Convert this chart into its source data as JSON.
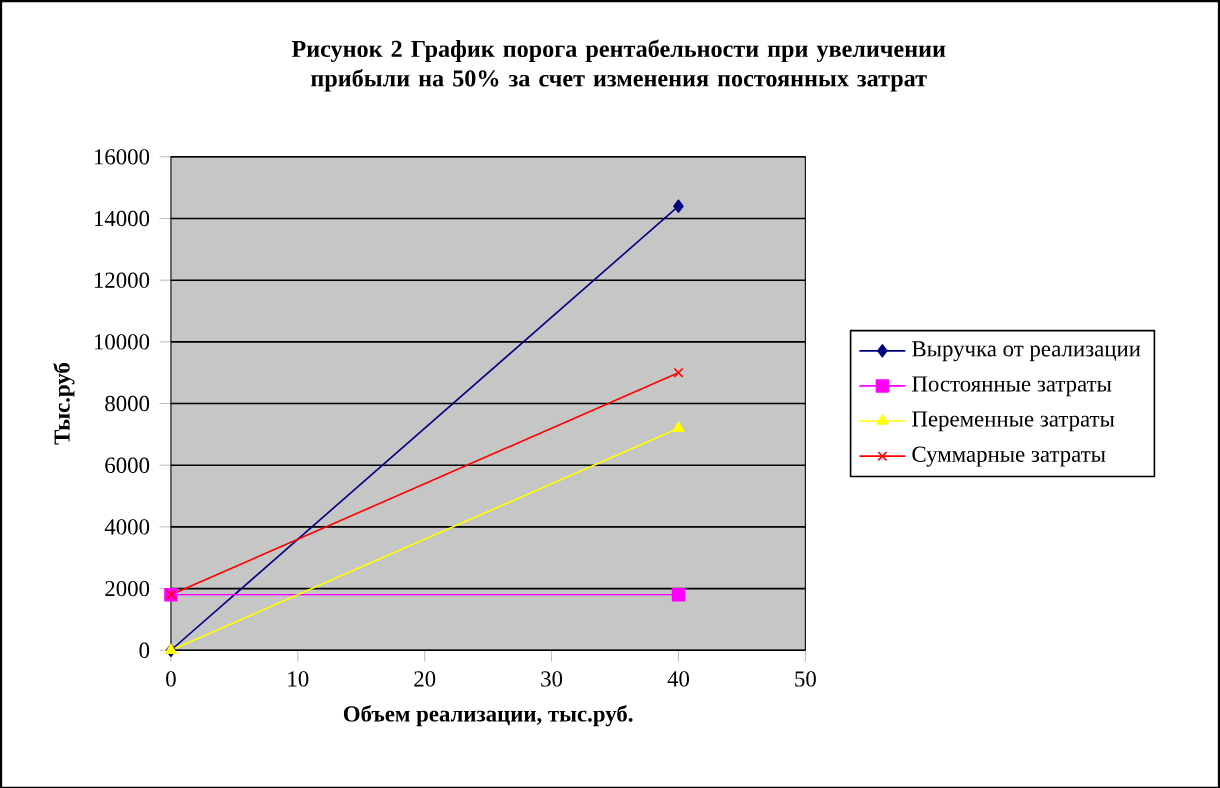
{
  "chart_data": {
    "type": "line",
    "title": "Рисунок 2 График порога рентабельности при увеличении прибыли на 50% за счет изменения постоянных затрат",
    "xlabel": "Объем реализации, тыс.руб.",
    "ylabel": "Тыс.руб",
    "x": [
      0,
      40
    ],
    "xlim": [
      0,
      50
    ],
    "xticks": [
      0,
      10,
      20,
      30,
      40,
      50
    ],
    "ylim": [
      0,
      16000
    ],
    "yticks": [
      0,
      2000,
      4000,
      6000,
      8000,
      10000,
      12000,
      14000,
      16000
    ],
    "grid": "y",
    "legend": "right",
    "series": [
      {
        "name": "Выручка от реализации",
        "color": "#000080",
        "values": [
          0,
          14400
        ],
        "marker": "diamond"
      },
      {
        "name": "Постоянные затраты",
        "color": "#ff00ff",
        "values": [
          1800,
          1800
        ],
        "marker": "square"
      },
      {
        "name": "Переменные затраты",
        "color": "#ffff00",
        "values": [
          0,
          7200
        ],
        "marker": "triangle"
      },
      {
        "name": "Суммарные затраты",
        "color": "#ff0000",
        "values": [
          1800,
          9000
        ],
        "marker": "cross"
      }
    ]
  }
}
